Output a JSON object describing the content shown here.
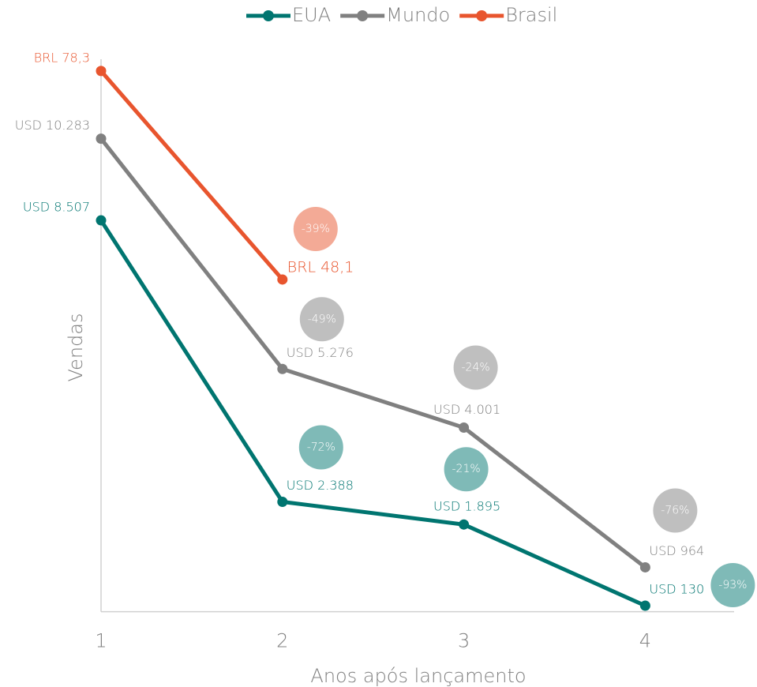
{
  "chart_data": {
    "type": "line",
    "x_label": "Anos após lançamento",
    "y_label": "Vendas",
    "x": [
      1,
      2,
      3,
      4
    ],
    "xlim": [
      1,
      4.49
    ],
    "xticks": [
      1,
      2,
      3,
      4
    ],
    "ylim": [
      0,
      12010
    ],
    "y2lim": [
      0,
      80
    ],
    "legend": "top",
    "series": [
      {
        "name": "EUA",
        "color": "#007570",
        "values": [
          8507,
          2388,
          1895,
          130
        ],
        "value_labels": [
          "USD 8.507",
          "USD 2.388",
          "USD 1.895",
          "USD 130"
        ],
        "change_labels": [
          null,
          "-72%",
          "-21%",
          "-93%"
        ]
      },
      {
        "name": "Mundo",
        "color": "#808080",
        "values": [
          10283,
          5276,
          4001,
          964
        ],
        "value_labels": [
          "USD 10.283",
          "USD 5.276",
          "USD 4.001",
          "USD 964"
        ],
        "change_labels": [
          null,
          "-49%",
          "-24%",
          "-76%"
        ]
      },
      {
        "name": "Brasil",
        "color": "#e8552e",
        "axis": "y2",
        "values": [
          78.3,
          48.1,
          null,
          null
        ],
        "value_labels": [
          "BRL 78,3",
          "BRL 48,1",
          null,
          null
        ],
        "change_labels": [
          null,
          "-39%",
          null,
          null
        ]
      }
    ]
  }
}
